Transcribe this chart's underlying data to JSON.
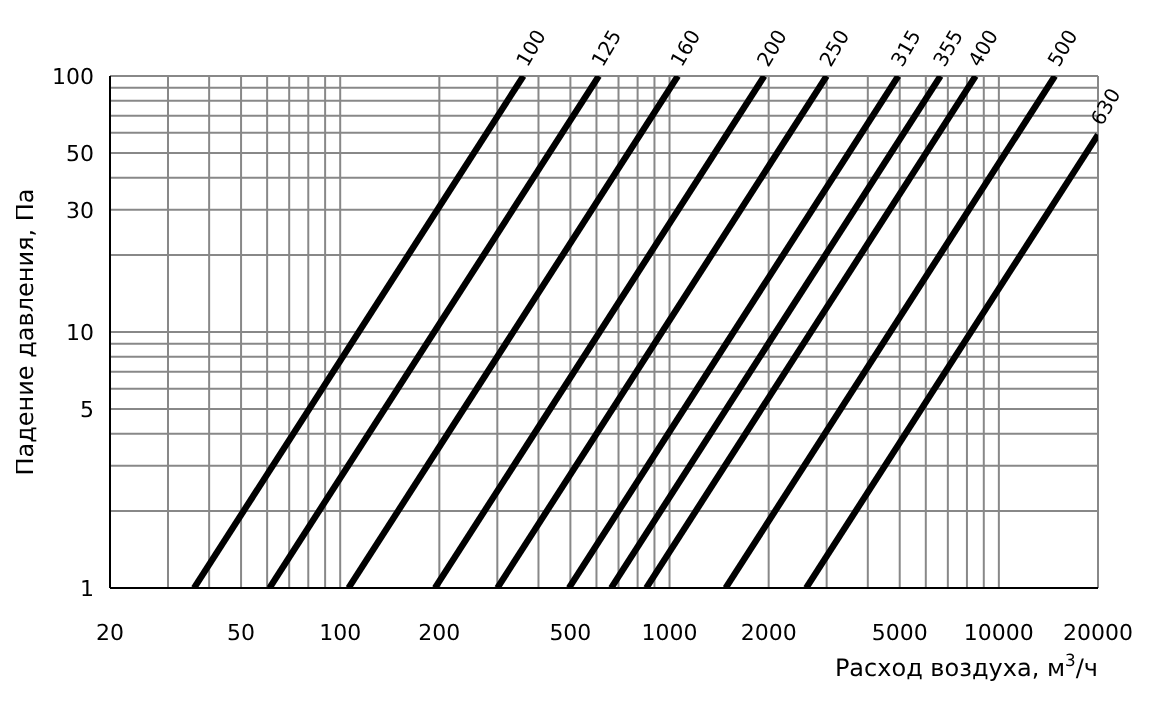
{
  "chart_data": {
    "type": "line",
    "xlabel": "Расход воздуха, м$^{3}$/ч",
    "ylabel": "Падение давления, Па",
    "log": "xy",
    "grid": true,
    "legend": false,
    "marker": "none",
    "line_style": "solid",
    "xlim": [
      20,
      20000
    ],
    "ylim": [
      1,
      100
    ],
    "xticks": [
      20,
      {
        "value": 30,
        "label": null
      },
      {
        "value": 40,
        "label": null
      },
      50,
      {
        "value": 60,
        "label": null
      },
      {
        "value": 70,
        "label": null
      },
      {
        "value": 80,
        "label": null
      },
      {
        "value": 90,
        "label": null
      },
      100,
      200,
      {
        "value": 300,
        "label": null
      },
      {
        "value": 400,
        "label": null
      },
      500,
      {
        "value": 600,
        "label": null
      },
      {
        "value": 700,
        "label": null
      },
      {
        "value": 800,
        "label": null
      },
      {
        "value": 900,
        "label": null
      },
      1000,
      2000,
      {
        "value": 3000,
        "label": null
      },
      {
        "value": 4000,
        "label": null
      },
      5000,
      {
        "value": 6000,
        "label": null
      },
      {
        "value": 7000,
        "label": null
      },
      {
        "value": 8000,
        "label": null
      },
      {
        "value": 9000,
        "label": null
      },
      10000,
      20000
    ],
    "yticks": [
      1,
      {
        "value": 2,
        "label": null
      },
      {
        "value": 3,
        "label": null
      },
      {
        "value": 4,
        "label": null
      },
      5,
      {
        "value": 6,
        "label": null
      },
      {
        "value": 7,
        "label": null
      },
      {
        "value": 8,
        "label": null
      },
      {
        "value": 9,
        "label": null
      },
      10,
      {
        "value": 20,
        "label": null
      },
      30,
      {
        "value": 40,
        "label": null
      },
      50,
      {
        "value": 60,
        "label": null
      },
      {
        "value": 70,
        "label": null
      },
      {
        "value": 80,
        "label": null
      },
      {
        "value": 90,
        "label": null
      },
      100
    ],
    "series": [
      {
        "name": "100",
        "color": "#000000",
        "x": [
          36,
          360
        ],
        "values": [
          1,
          100
        ]
      },
      {
        "name": "125",
        "color": "#000000",
        "x": [
          61,
          610
        ],
        "values": [
          1,
          100
        ]
      },
      {
        "name": "160",
        "color": "#000000",
        "x": [
          106,
          1060
        ],
        "values": [
          1,
          100
        ]
      },
      {
        "name": "200",
        "color": "#000000",
        "x": [
          194,
          1940
        ],
        "values": [
          1,
          100
        ]
      },
      {
        "name": "250",
        "color": "#000000",
        "x": [
          300,
          3000
        ],
        "values": [
          1,
          100
        ]
      },
      {
        "name": "315",
        "color": "#000000",
        "x": [
          495,
          4950
        ],
        "values": [
          1,
          100
        ]
      },
      {
        "name": "355",
        "color": "#000000",
        "x": [
          665,
          6650
        ],
        "values": [
          1,
          100
        ]
      },
      {
        "name": "400",
        "color": "#000000",
        "x": [
          850,
          8500
        ],
        "values": [
          1,
          100
        ]
      },
      {
        "name": "500",
        "color": "#000000",
        "x": [
          1480,
          14800
        ],
        "values": [
          1,
          100
        ]
      },
      {
        "name": "630",
        "color": "#000000",
        "x": [
          2600,
          20000
        ],
        "values": [
          1,
          59
        ]
      }
    ]
  }
}
